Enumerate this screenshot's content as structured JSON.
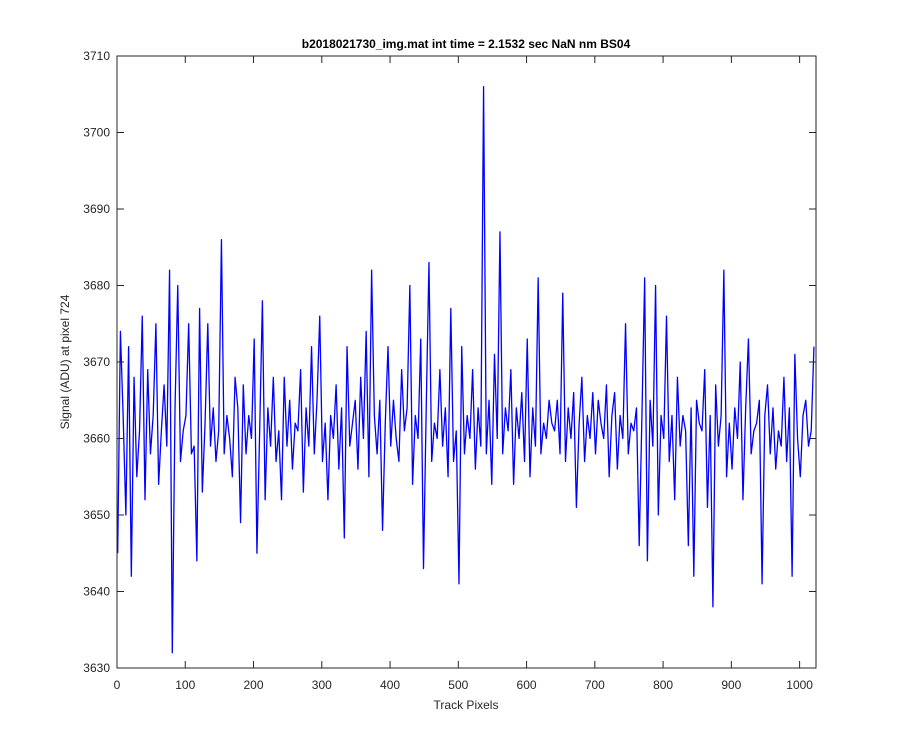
{
  "chart_data": {
    "type": "line",
    "title": "b2018021730_img.mat int time = 2.1532 sec  NaN nm BS04",
    "xlabel": "Track Pixels",
    "ylabel": "Signal (ADU) at pixel 724",
    "xlim": [
      0,
      1024
    ],
    "ylim": [
      3630,
      3710
    ],
    "xticks": [
      0,
      100,
      200,
      300,
      400,
      500,
      600,
      700,
      800,
      900,
      1000
    ],
    "yticks": [
      3630,
      3640,
      3650,
      3660,
      3670,
      3680,
      3690,
      3700,
      3710
    ],
    "grid": false,
    "series_color": "#0000ff",
    "series": [
      {
        "x_start": 1,
        "x_step": 4,
        "values": [
          3645,
          3674,
          3663,
          3650,
          3672,
          3642,
          3668,
          3655,
          3661,
          3676,
          3652,
          3669,
          3658,
          3663,
          3675,
          3654,
          3661,
          3667,
          3659,
          3682,
          3632,
          3664,
          3680,
          3657,
          3661,
          3663,
          3675,
          3658,
          3659,
          3644,
          3677,
          3653,
          3662,
          3675,
          3659,
          3664,
          3657,
          3661,
          3686,
          3658,
          3663,
          3660,
          3655,
          3668,
          3664,
          3649,
          3667,
          3658,
          3663,
          3660,
          3673,
          3645,
          3661,
          3678,
          3652,
          3664,
          3659,
          3668,
          3657,
          3661,
          3652,
          3668,
          3659,
          3665,
          3656,
          3662,
          3661,
          3669,
          3653,
          3664,
          3659,
          3672,
          3658,
          3665,
          3676,
          3657,
          3662,
          3652,
          3663,
          3660,
          3667,
          3656,
          3664,
          3647,
          3672,
          3659,
          3662,
          3665,
          3656,
          3668,
          3660,
          3674,
          3655,
          3682,
          3663,
          3658,
          3665,
          3648,
          3662,
          3672,
          3659,
          3665,
          3660,
          3657,
          3669,
          3661,
          3664,
          3680,
          3654,
          3663,
          3660,
          3673,
          3643,
          3664,
          3683,
          3657,
          3662,
          3660,
          3669,
          3659,
          3664,
          3655,
          3677,
          3657,
          3661,
          3641,
          3672,
          3658,
          3663,
          3660,
          3669,
          3656,
          3664,
          3659,
          3706,
          3658,
          3665,
          3654,
          3671,
          3660,
          3687,
          3658,
          3664,
          3661,
          3669,
          3654,
          3664,
          3660,
          3666,
          3657,
          3673,
          3655,
          3664,
          3659,
          3681,
          3658,
          3662,
          3660,
          3665,
          3662,
          3661,
          3665,
          3658,
          3679,
          3657,
          3664,
          3660,
          3666,
          3651,
          3662,
          3668,
          3657,
          3663,
          3660,
          3666,
          3658,
          3665,
          3662,
          3660,
          3667,
          3655,
          3663,
          3666,
          3656,
          3663,
          3660,
          3675,
          3658,
          3662,
          3661,
          3664,
          3646,
          3663,
          3681,
          3644,
          3665,
          3659,
          3680,
          3650,
          3663,
          3660,
          3676,
          3657,
          3663,
          3652,
          3668,
          3659,
          3663,
          3661,
          3646,
          3664,
          3642,
          3665,
          3662,
          3661,
          3669,
          3651,
          3663,
          3638,
          3667,
          3659,
          3663,
          3682,
          3655,
          3662,
          3656,
          3664,
          3660,
          3670,
          3652,
          3664,
          3673,
          3658,
          3661,
          3662,
          3665,
          3641,
          3663,
          3667,
          3658,
          3664,
          3656,
          3661,
          3659,
          3668,
          3657,
          3664,
          3642,
          3671,
          3660,
          3655,
          3663,
          3665,
          3659,
          3661,
          3672
        ]
      }
    ]
  }
}
